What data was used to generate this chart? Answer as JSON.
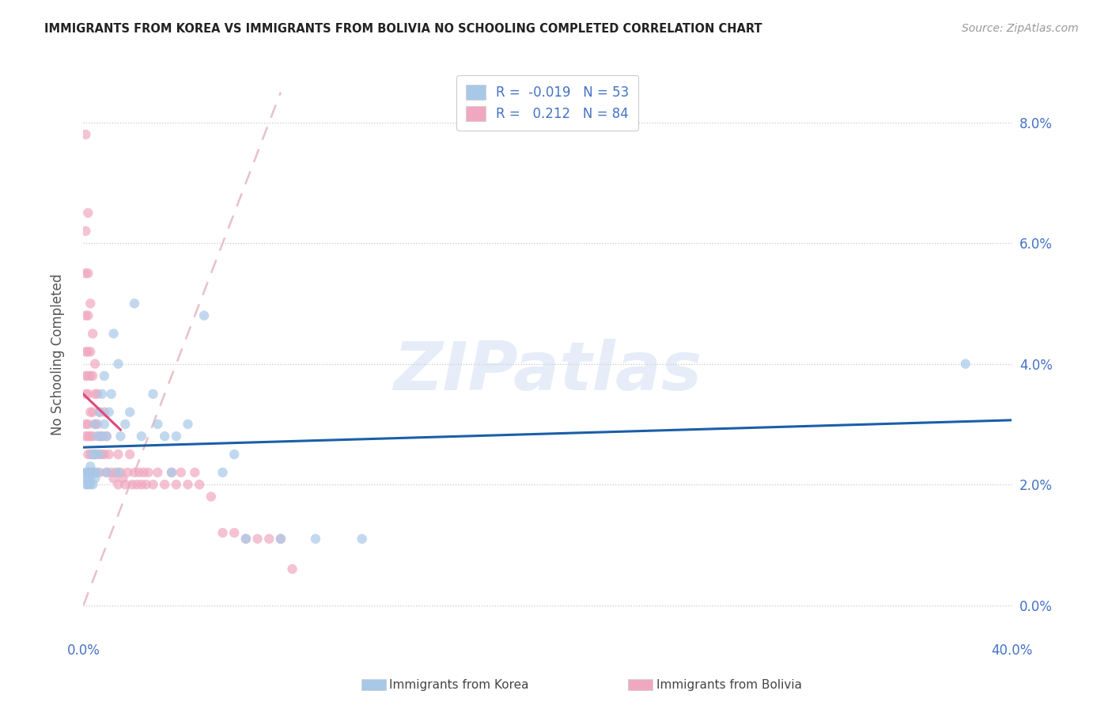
{
  "title": "IMMIGRANTS FROM KOREA VS IMMIGRANTS FROM BOLIVIA NO SCHOOLING COMPLETED CORRELATION CHART",
  "source": "Source: ZipAtlas.com",
  "ylabel": "No Schooling Completed",
  "korea_R": -0.019,
  "korea_N": 53,
  "bolivia_R": 0.212,
  "bolivia_N": 84,
  "korea_color": "#A8C8E8",
  "bolivia_color": "#F0A8C0",
  "korea_line_color": "#1A5FA8",
  "bolivia_line_color": "#E04878",
  "diagonal_color": "#E8C0C8",
  "text_color": "#4472C4",
  "watermark": "ZIPatlas",
  "xmin": 0.0,
  "xmax": 0.4,
  "ymin": -0.005,
  "ymax": 0.088,
  "korea_x": [
    0.001,
    0.001,
    0.001,
    0.0015,
    0.002,
    0.002,
    0.002,
    0.0025,
    0.003,
    0.003,
    0.003,
    0.003,
    0.004,
    0.004,
    0.004,
    0.005,
    0.005,
    0.005,
    0.005,
    0.006,
    0.006,
    0.007,
    0.007,
    0.008,
    0.008,
    0.009,
    0.009,
    0.01,
    0.01,
    0.011,
    0.012,
    0.013,
    0.015,
    0.015,
    0.016,
    0.018,
    0.02,
    0.022,
    0.025,
    0.03,
    0.032,
    0.035,
    0.038,
    0.04,
    0.045,
    0.052,
    0.06,
    0.065,
    0.07,
    0.085,
    0.1,
    0.12,
    0.38
  ],
  "korea_y": [
    0.022,
    0.02,
    0.021,
    0.022,
    0.022,
    0.02,
    0.021,
    0.022,
    0.023,
    0.021,
    0.02,
    0.022,
    0.025,
    0.022,
    0.02,
    0.03,
    0.025,
    0.022,
    0.021,
    0.028,
    0.022,
    0.032,
    0.025,
    0.035,
    0.028,
    0.038,
    0.03,
    0.028,
    0.022,
    0.032,
    0.035,
    0.045,
    0.04,
    0.022,
    0.028,
    0.03,
    0.032,
    0.05,
    0.028,
    0.035,
    0.03,
    0.028,
    0.022,
    0.028,
    0.03,
    0.048,
    0.022,
    0.025,
    0.011,
    0.011,
    0.011,
    0.011,
    0.04
  ],
  "bolivia_x": [
    0.001,
    0.001,
    0.001,
    0.001,
    0.001,
    0.001,
    0.001,
    0.001,
    0.001,
    0.002,
    0.002,
    0.002,
    0.002,
    0.002,
    0.002,
    0.002,
    0.002,
    0.002,
    0.002,
    0.003,
    0.003,
    0.003,
    0.003,
    0.003,
    0.003,
    0.004,
    0.004,
    0.004,
    0.004,
    0.004,
    0.004,
    0.005,
    0.005,
    0.005,
    0.005,
    0.005,
    0.006,
    0.006,
    0.006,
    0.007,
    0.007,
    0.007,
    0.008,
    0.008,
    0.009,
    0.009,
    0.01,
    0.01,
    0.011,
    0.012,
    0.013,
    0.014,
    0.015,
    0.015,
    0.016,
    0.017,
    0.018,
    0.019,
    0.02,
    0.021,
    0.022,
    0.023,
    0.024,
    0.025,
    0.026,
    0.027,
    0.028,
    0.03,
    0.032,
    0.035,
    0.038,
    0.04,
    0.042,
    0.045,
    0.048,
    0.05,
    0.055,
    0.06,
    0.065,
    0.07,
    0.075,
    0.08,
    0.085,
    0.09
  ],
  "bolivia_y": [
    0.078,
    0.062,
    0.055,
    0.048,
    0.042,
    0.038,
    0.035,
    0.03,
    0.028,
    0.065,
    0.055,
    0.048,
    0.042,
    0.038,
    0.035,
    0.03,
    0.028,
    0.025,
    0.022,
    0.05,
    0.042,
    0.038,
    0.032,
    0.028,
    0.025,
    0.045,
    0.038,
    0.032,
    0.028,
    0.025,
    0.022,
    0.04,
    0.035,
    0.03,
    0.025,
    0.022,
    0.035,
    0.03,
    0.025,
    0.032,
    0.028,
    0.022,
    0.028,
    0.025,
    0.032,
    0.025,
    0.028,
    0.022,
    0.025,
    0.022,
    0.021,
    0.022,
    0.025,
    0.02,
    0.022,
    0.021,
    0.02,
    0.022,
    0.025,
    0.02,
    0.022,
    0.02,
    0.022,
    0.02,
    0.022,
    0.02,
    0.022,
    0.02,
    0.022,
    0.02,
    0.022,
    0.02,
    0.022,
    0.02,
    0.022,
    0.02,
    0.018,
    0.012,
    0.012,
    0.011,
    0.011,
    0.011,
    0.011,
    0.006
  ]
}
